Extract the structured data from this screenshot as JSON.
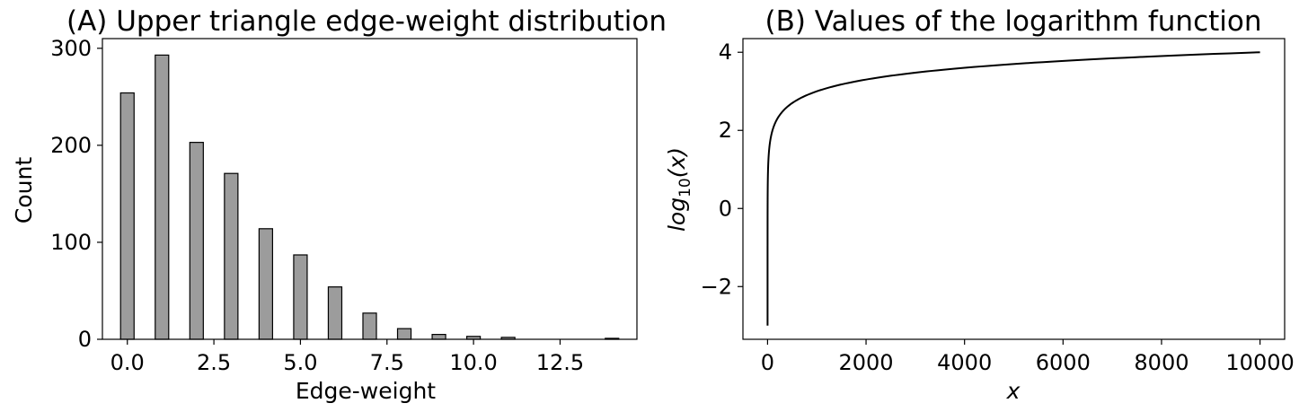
{
  "chart_data": [
    {
      "type": "bar",
      "title": "(A) Upper triangle edge-weight distribution",
      "xlabel": "Edge-weight",
      "ylabel": "Count",
      "xlim": [
        -0.72,
        14.72
      ],
      "ylim": [
        0,
        310
      ],
      "xticks": [
        0,
        2.5,
        5,
        7.5,
        10,
        12.5
      ],
      "xtick_labels": [
        "0.0",
        "2.5",
        "5.0",
        "7.5",
        "10.0",
        "12.5"
      ],
      "yticks": [
        0,
        100,
        200,
        300
      ],
      "ytick_labels": [
        "0",
        "100",
        "200",
        "300"
      ],
      "bar_width": 0.39,
      "x": [
        0,
        1,
        2,
        3,
        4,
        5,
        6,
        7,
        8,
        9,
        10,
        11,
        14
      ],
      "values": [
        254,
        293,
        203,
        171,
        114,
        87,
        54,
        27,
        11,
        5,
        3,
        2,
        1
      ],
      "grid": false
    },
    {
      "type": "line",
      "title": "(B) Values of the logarithm function",
      "xlabel": "x",
      "ylabel_main": "log",
      "ylabel_sub": "10",
      "ylabel_tail": "(x)",
      "xlim": [
        -500,
        10500
      ],
      "ylim": [
        -3.35,
        4.35
      ],
      "xticks": [
        0,
        2000,
        4000,
        6000,
        8000,
        10000
      ],
      "xtick_labels": [
        "0",
        "2000",
        "4000",
        "6000",
        "8000",
        "10000"
      ],
      "yticks": [
        -2,
        0,
        2,
        4
      ],
      "ytick_labels": [
        "−2",
        "0",
        "2",
        "4"
      ],
      "function": "log10",
      "x_range": [
        0.001,
        10000
      ],
      "grid": false
    }
  ]
}
